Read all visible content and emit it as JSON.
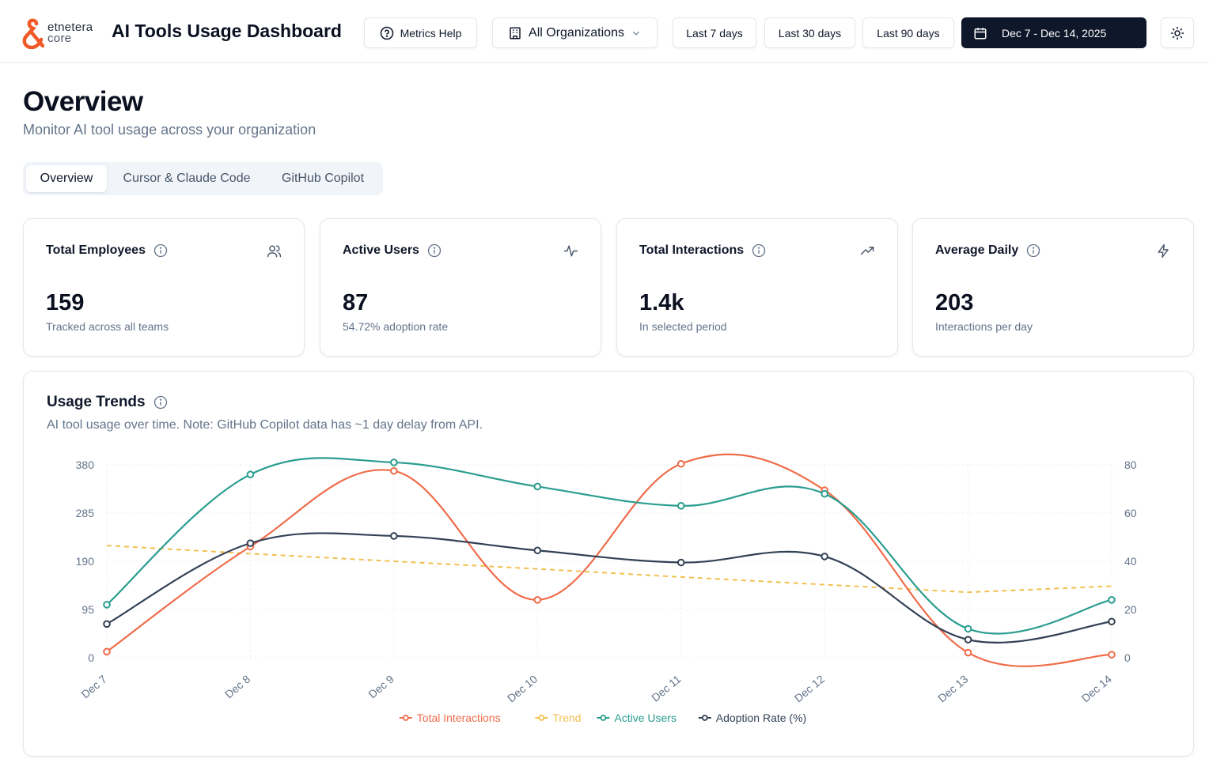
{
  "brand": {
    "line1": "etnetera",
    "line2": "core",
    "accent": "#f05a28"
  },
  "app_title": "AI Tools Usage Dashboard",
  "header": {
    "metrics_help": "Metrics Help",
    "org_select": "All Organizations",
    "range_7": "Last 7 days",
    "range_30": "Last 30 days",
    "range_90": "Last 90 days",
    "date_range": "Dec 7 - Dec 14, 2025"
  },
  "page": {
    "title": "Overview",
    "subtitle": "Monitor AI tool usage across your organization"
  },
  "tabs": [
    {
      "label": "Overview",
      "active": true
    },
    {
      "label": "Cursor & Claude Code",
      "active": false
    },
    {
      "label": "GitHub Copilot",
      "active": false
    }
  ],
  "cards": [
    {
      "title": "Total Employees",
      "value": "159",
      "note": "Tracked across all teams",
      "icon": "users-icon"
    },
    {
      "title": "Active Users",
      "value": "87",
      "note": "54.72% adoption rate",
      "icon": "activity-icon"
    },
    {
      "title": "Total Interactions",
      "value": "1.4k",
      "note": "In selected period",
      "icon": "trending-up-icon"
    },
    {
      "title": "Average Daily",
      "value": "203",
      "note": "Interactions per day",
      "icon": "zap-icon"
    }
  ],
  "usage_trends": {
    "title": "Usage Trends",
    "description": "AI tool usage over time. Note: GitHub Copilot data has ~1 day delay from API."
  },
  "chart_data": {
    "type": "line",
    "title": "Usage Trends",
    "categories": [
      "Dec 7",
      "Dec 8",
      "Dec 9",
      "Dec 10",
      "Dec 11",
      "Dec 12",
      "Dec 13",
      "Dec 14"
    ],
    "y_left": {
      "ticks": [
        0,
        95,
        190,
        285,
        380
      ],
      "ylim": [
        0,
        380
      ]
    },
    "y_right": {
      "ticks": [
        0,
        20,
        40,
        60,
        80
      ],
      "ylim": [
        0,
        80
      ]
    },
    "grid": true,
    "legend_position": "bottom",
    "series": [
      {
        "name": "Total Interactions",
        "axis": "left",
        "color": "#ef6c4a",
        "dashed": false,
        "markers": true,
        "values": [
          12,
          219,
          368,
          114,
          382,
          330,
          10,
          6
        ]
      },
      {
        "name": "Trend",
        "axis": "left",
        "color": "#f2c04f",
        "dashed": true,
        "markers": false,
        "values": [
          221,
          205,
          190,
          175,
          159,
          144,
          129,
          141
        ]
      },
      {
        "name": "Active Users",
        "axis": "right",
        "color": "#2a9d8f",
        "dashed": false,
        "markers": true,
        "values": [
          22,
          76,
          81,
          71,
          63,
          68,
          12,
          24
        ]
      },
      {
        "name": "Adoption Rate (%)",
        "axis": "right",
        "color": "#334155",
        "dashed": false,
        "markers": true,
        "values": [
          14,
          47.5,
          50.5,
          44.5,
          39.5,
          42,
          7.5,
          15
        ]
      }
    ]
  }
}
